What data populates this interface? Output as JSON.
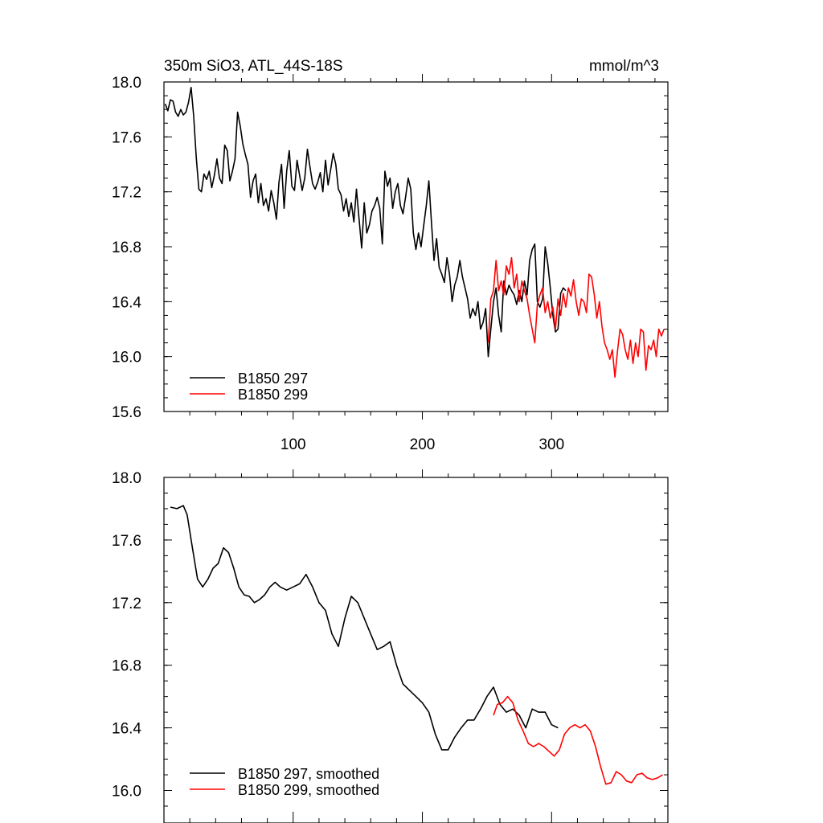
{
  "chart_data": [
    {
      "type": "line",
      "title_left": "350m SiO3, ATL_44S-18S",
      "title_right": "mmol/m^3",
      "xlabel": "",
      "ylabel": "",
      "xlim": [
        0,
        390
      ],
      "ylim": [
        15.6,
        18.0
      ],
      "x_ticks": [
        100,
        200,
        300
      ],
      "x_tick_labels": [
        "100",
        "200",
        "300"
      ],
      "y_ticks": [
        15.6,
        16.0,
        16.4,
        16.8,
        17.2,
        17.6,
        18.0
      ],
      "y_tick_labels": [
        "15.6",
        "16.0",
        "16.4",
        "16.8",
        "17.2",
        "17.6",
        "18.0"
      ],
      "legend_position": "bottom-left",
      "series": [
        {
          "name": "B1850 297",
          "color": "#000000",
          "x": [
            1,
            3,
            5,
            7,
            9,
            11,
            13,
            15,
            17,
            19,
            21,
            23,
            25,
            27,
            29,
            31,
            33,
            35,
            37,
            39,
            41,
            43,
            45,
            47,
            49,
            51,
            53,
            55,
            57,
            59,
            61,
            63,
            65,
            67,
            69,
            71,
            73,
            75,
            77,
            79,
            81,
            83,
            85,
            87,
            89,
            91,
            93,
            95,
            97,
            99,
            101,
            103,
            105,
            107,
            109,
            111,
            113,
            115,
            117,
            119,
            121,
            123,
            125,
            127,
            129,
            131,
            133,
            135,
            137,
            139,
            141,
            143,
            145,
            147,
            149,
            151,
            153,
            155,
            157,
            159,
            161,
            163,
            165,
            167,
            169,
            171,
            173,
            175,
            177,
            179,
            181,
            183,
            185,
            187,
            189,
            191,
            193,
            195,
            197,
            199,
            201,
            203,
            205,
            207,
            209,
            211,
            213,
            215,
            217,
            219,
            221,
            223,
            225,
            227,
            229,
            231,
            233,
            235,
            237,
            239,
            241,
            243,
            245,
            247,
            249,
            251,
            253,
            255,
            257,
            259,
            261,
            263,
            265,
            267,
            269,
            271,
            273,
            275,
            277,
            279,
            281,
            283,
            285,
            287,
            289,
            291,
            293,
            295,
            297,
            299,
            301,
            303,
            305,
            307,
            309,
            311
          ],
          "y": [
            17.84,
            17.79,
            17.87,
            17.86,
            17.78,
            17.75,
            17.8,
            17.76,
            17.78,
            17.85,
            17.96,
            17.75,
            17.45,
            17.22,
            17.2,
            17.33,
            17.29,
            17.35,
            17.23,
            17.32,
            17.44,
            17.3,
            17.26,
            17.54,
            17.5,
            17.28,
            17.35,
            17.44,
            17.78,
            17.68,
            17.55,
            17.47,
            17.4,
            17.16,
            17.28,
            17.33,
            17.12,
            17.26,
            17.1,
            17.15,
            17.06,
            17.21,
            17.12,
            17.0,
            17.27,
            17.4,
            17.08,
            17.35,
            17.5,
            17.24,
            17.21,
            17.43,
            17.32,
            17.21,
            17.3,
            17.51,
            17.38,
            17.26,
            17.22,
            17.27,
            17.34,
            17.2,
            17.43,
            17.25,
            17.36,
            17.48,
            17.4,
            17.22,
            17.18,
            17.06,
            17.15,
            17.02,
            17.12,
            16.98,
            17.22,
            17.0,
            16.79,
            17.12,
            16.9,
            16.96,
            17.06,
            17.1,
            17.16,
            17.08,
            16.82,
            17.35,
            17.24,
            17.3,
            17.08,
            17.2,
            17.26,
            17.1,
            17.04,
            17.16,
            17.3,
            17.22,
            16.9,
            16.78,
            16.9,
            16.8,
            16.95,
            17.1,
            17.28,
            16.98,
            16.7,
            16.86,
            16.65,
            16.6,
            16.54,
            16.72,
            16.6,
            16.4,
            16.52,
            16.58,
            16.7,
            16.58,
            16.5,
            16.42,
            16.28,
            16.35,
            16.3,
            16.4,
            16.2,
            16.25,
            16.35,
            16.0,
            16.2,
            16.4,
            16.5,
            16.3,
            16.18,
            16.55,
            16.45,
            16.52,
            16.48,
            16.45,
            16.38,
            16.48,
            16.4,
            16.55,
            16.45,
            16.7,
            16.78,
            16.82,
            16.4,
            16.36,
            16.42,
            16.8,
            16.68,
            16.5,
            16.3,
            16.18,
            16.2,
            16.46,
            16.5,
            16.48
          ]
        },
        {
          "name": "B1850 299",
          "color": "#ff0000",
          "x": [
            251,
            253,
            255,
            257,
            259,
            261,
            263,
            265,
            267,
            269,
            271,
            273,
            275,
            277,
            279,
            281,
            283,
            285,
            287,
            289,
            291,
            293,
            295,
            297,
            299,
            301,
            303,
            305,
            307,
            309,
            311,
            313,
            315,
            317,
            319,
            321,
            323,
            325,
            327,
            329,
            331,
            333,
            335,
            337,
            339,
            341,
            343,
            345,
            347,
            349,
            351,
            353,
            355,
            357,
            359,
            361,
            363,
            365,
            367,
            369,
            371,
            373,
            375,
            377,
            379,
            381,
            383,
            385,
            387
          ],
          "y": [
            16.1,
            16.42,
            16.48,
            16.7,
            16.48,
            16.55,
            16.45,
            16.66,
            16.6,
            16.72,
            16.5,
            16.6,
            16.4,
            16.55,
            16.48,
            16.42,
            16.3,
            16.2,
            16.1,
            16.38,
            16.45,
            16.5,
            16.32,
            16.4,
            16.28,
            16.36,
            16.2,
            16.42,
            16.3,
            16.46,
            16.36,
            16.5,
            16.44,
            16.56,
            16.4,
            16.3,
            16.42,
            16.4,
            16.32,
            16.6,
            16.58,
            16.45,
            16.28,
            16.4,
            16.22,
            16.1,
            16.05,
            15.98,
            16.05,
            15.85,
            16.04,
            16.2,
            16.16,
            16.05,
            15.98,
            16.12,
            15.95,
            16.1,
            16.0,
            16.2,
            16.18,
            15.9,
            16.08,
            16.05,
            16.12,
            16.0,
            16.2,
            16.15,
            16.2
          ]
        }
      ]
    },
    {
      "type": "line",
      "xlabel": "",
      "ylabel": "",
      "xlim": [
        0,
        390
      ],
      "ylim": [
        15.9,
        18.0
      ],
      "y_ticks": [
        16.0,
        16.4,
        16.8,
        17.2,
        17.6,
        18.0
      ],
      "y_tick_labels": [
        "16.0",
        "16.4",
        "16.8",
        "17.2",
        "17.6",
        "18.0"
      ],
      "legend_position": "bottom-left",
      "series": [
        {
          "name": "B1850 297, smoothed",
          "color": "#000000",
          "x": [
            5,
            10,
            15,
            18,
            22,
            26,
            30,
            34,
            38,
            42,
            46,
            50,
            54,
            58,
            62,
            66,
            70,
            74,
            78,
            82,
            86,
            90,
            95,
            100,
            105,
            110,
            115,
            120,
            125,
            130,
            135,
            140,
            145,
            150,
            155,
            160,
            165,
            170,
            175,
            180,
            185,
            190,
            195,
            200,
            205,
            210,
            215,
            220,
            225,
            230,
            235,
            240,
            245,
            250,
            255,
            260,
            265,
            270,
            275,
            280,
            285,
            290,
            295,
            300,
            305
          ],
          "y": [
            17.81,
            17.8,
            17.82,
            17.76,
            17.55,
            17.35,
            17.3,
            17.35,
            17.42,
            17.45,
            17.55,
            17.52,
            17.42,
            17.3,
            17.25,
            17.24,
            17.2,
            17.22,
            17.25,
            17.3,
            17.33,
            17.3,
            17.28,
            17.3,
            17.32,
            17.38,
            17.3,
            17.2,
            17.15,
            17.0,
            16.92,
            17.1,
            17.24,
            17.2,
            17.1,
            17.0,
            16.9,
            16.92,
            16.95,
            16.8,
            16.68,
            16.64,
            16.6,
            16.56,
            16.5,
            16.36,
            16.26,
            16.26,
            16.34,
            16.4,
            16.45,
            16.45,
            16.52,
            16.6,
            16.66,
            16.55,
            16.5,
            16.52,
            16.48,
            16.4,
            16.52,
            16.5,
            16.5,
            16.42,
            16.4
          ]
        },
        {
          "name": "B1850 299, smoothed",
          "color": "#ff0000",
          "x": [
            255,
            258,
            262,
            266,
            270,
            274,
            278,
            282,
            286,
            290,
            294,
            298,
            302,
            306,
            310,
            314,
            318,
            322,
            326,
            330,
            334,
            338,
            342,
            346,
            350,
            354,
            358,
            362,
            366,
            370,
            374,
            378,
            382,
            386
          ],
          "y": [
            16.48,
            16.55,
            16.56,
            16.6,
            16.56,
            16.45,
            16.38,
            16.3,
            16.28,
            16.3,
            16.28,
            16.25,
            16.22,
            16.26,
            16.36,
            16.4,
            16.42,
            16.4,
            16.42,
            16.38,
            16.28,
            16.15,
            16.04,
            16.05,
            16.12,
            16.1,
            16.06,
            16.05,
            16.1,
            16.11,
            16.08,
            16.07,
            16.08,
            16.1
          ]
        }
      ]
    }
  ]
}
